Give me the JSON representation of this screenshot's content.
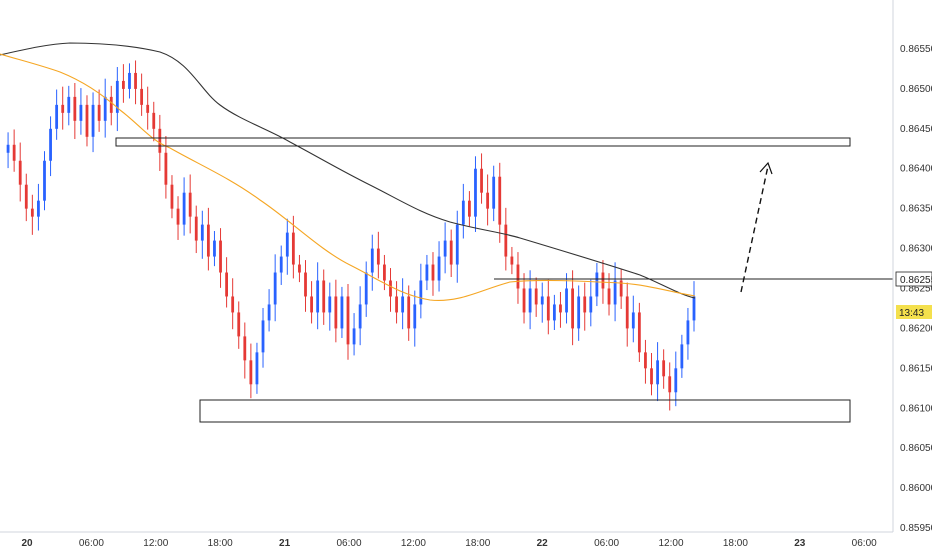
{
  "chart_data": {
    "type": "candlestick",
    "symbol_price_label": "0.86255",
    "countdown_label": "13:43",
    "y_axis": {
      "ticks": [
        "0.86550",
        "0.86500",
        "0.86450",
        "0.86400",
        "0.86350",
        "0.86300",
        "0.86250",
        "0.86200",
        "0.86150",
        "0.86100",
        "0.86050",
        "0.86000",
        "0.85950"
      ],
      "range": [
        0.85945,
        0.86565
      ]
    },
    "x_axis": {
      "ticks": [
        {
          "label": "20",
          "bold": true
        },
        {
          "label": "06:00"
        },
        {
          "label": "12:00"
        },
        {
          "label": "18:00"
        },
        {
          "label": "21",
          "bold": true
        },
        {
          "label": "06:00"
        },
        {
          "label": "12:00"
        },
        {
          "label": "18:00"
        },
        {
          "label": "22",
          "bold": true
        },
        {
          "label": "06:00"
        },
        {
          "label": "12:00"
        },
        {
          "label": "18:00"
        },
        {
          "label": "23",
          "bold": true
        },
        {
          "label": "06:00"
        }
      ]
    },
    "colors": {
      "up": "#2962ff",
      "down": "#e53935",
      "sma_slow": "#333333",
      "sma_fast": "#f5a623",
      "countdown_bg": "#f4e04d"
    },
    "resistance_zone": {
      "top": 0.86421,
      "bottom": 0.86414
    },
    "support_zone": {
      "top": 0.8611,
      "bottom": 0.86082
    },
    "price_line": 0.86255,
    "projection": {
      "from": 0.86233,
      "to": 0.86401
    },
    "candles_close": [
      0.8642,
      0.8643,
      0.8641,
      0.8638,
      0.8635,
      0.8634,
      0.8636,
      0.8641,
      0.8645,
      0.8648,
      0.8647,
      0.8649,
      0.8646,
      0.8648,
      0.8644,
      0.8648,
      0.8646,
      0.8649,
      0.8647,
      0.8651,
      0.865,
      0.8652,
      0.865,
      0.8648,
      0.8647,
      0.8645,
      0.8642,
      0.8638,
      0.8635,
      0.8633,
      0.8637,
      0.8634,
      0.8631,
      0.8633,
      0.8629,
      0.8631,
      0.8627,
      0.8624,
      0.8622,
      0.8619,
      0.8616,
      0.8613,
      0.8617,
      0.8621,
      0.8623,
      0.8627,
      0.8629,
      0.8632,
      0.8628,
      0.8627,
      0.8624,
      0.8622,
      0.8626,
      0.8622,
      0.8624,
      0.862,
      0.8624,
      0.8618,
      0.862,
      0.8623,
      0.8627,
      0.863,
      0.8628,
      0.8626,
      0.8624,
      0.8622,
      0.8624,
      0.862,
      0.8623,
      0.8626,
      0.8628,
      0.8626,
      0.8629,
      0.8631,
      0.8628,
      0.8633,
      0.8636,
      0.8634,
      0.864,
      0.8637,
      0.8635,
      0.8639,
      0.8633,
      0.8629,
      0.8628,
      0.8625,
      0.8622,
      0.8625,
      0.8623,
      0.8624,
      0.8621,
      0.8623,
      0.8622,
      0.8625,
      0.862,
      0.8624,
      0.8622,
      0.8624,
      0.8627,
      0.8625,
      0.8623,
      0.8626,
      0.8624,
      0.862,
      0.8622,
      0.8617,
      0.8615,
      0.8613,
      0.8616,
      0.8614,
      0.8612,
      0.8615,
      0.8618,
      0.8621,
      0.8624
    ]
  }
}
